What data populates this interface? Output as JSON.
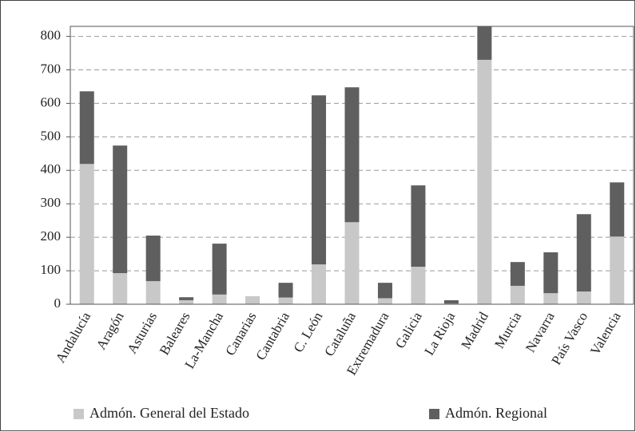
{
  "chart_data": {
    "type": "stacked_bar",
    "categories": [
      "Andalucía",
      "Aragón",
      "Asturias",
      "Baleares",
      "La-Mancha",
      "Canarias",
      "Cantabria",
      "C. León",
      "Cataluña",
      "Extremadura",
      "Galicia",
      "La Rioja",
      "Madrid",
      "Murcia",
      "Navarra",
      "País Vasco",
      "Valencia"
    ],
    "series": [
      {
        "name": "Admón. General del Estado",
        "color": "#c8c8c8",
        "values": [
          419,
          93,
          69,
          12,
          29,
          24,
          20,
          119,
          245,
          18,
          112,
          2,
          730,
          55,
          33,
          38,
          202
        ]
      },
      {
        "name": "Admón. Regional",
        "color": "#5f5f5f",
        "values": [
          217,
          381,
          136,
          9,
          152,
          0,
          44,
          505,
          403,
          46,
          243,
          10,
          100,
          71,
          122,
          231,
          162
        ]
      }
    ],
    "ylim": [
      0,
      830
    ],
    "yticks": [
      0,
      100,
      200,
      300,
      400,
      500,
      600,
      700,
      800
    ],
    "grid": true
  }
}
